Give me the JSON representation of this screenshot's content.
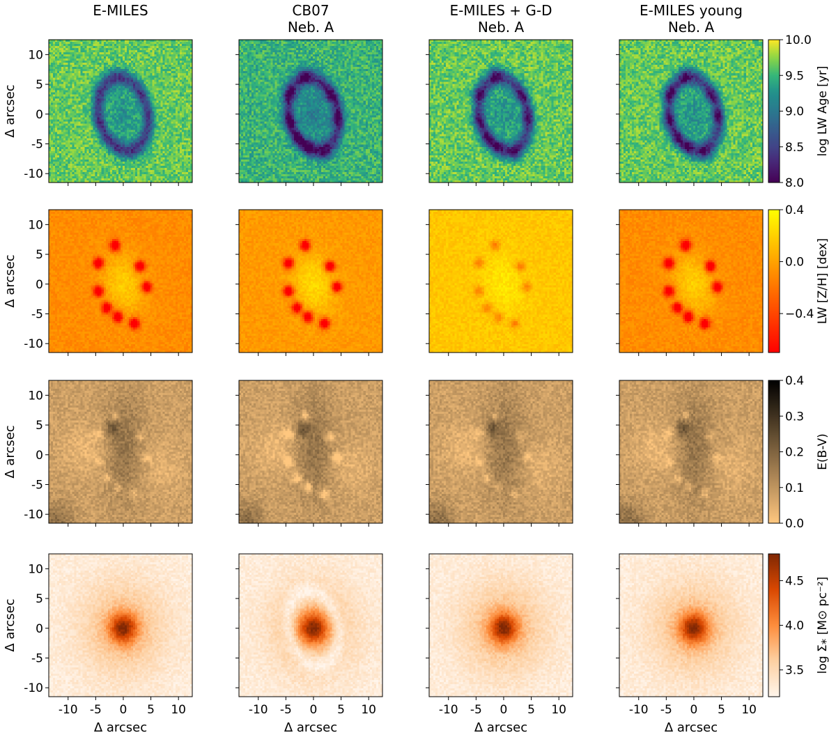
{
  "chart_data": {
    "type": "heatmap",
    "column_titles": [
      [
        "E-MILES"
      ],
      [
        "CB07",
        "Neb. A"
      ],
      [
        "E-MILES + G-D",
        "Neb. A"
      ],
      [
        "E-MILES young",
        "Neb. A"
      ]
    ],
    "xlabel": "Δ arcsec",
    "ylabel": "Δ arcsec",
    "xlim": [
      -13.5,
      12.5
    ],
    "ylim": [
      -11.5,
      12.5
    ],
    "x_ticks": [
      -10,
      -5,
      0,
      5,
      10
    ],
    "x_tick_labels": [
      "-10",
      "-5",
      "0",
      "5",
      "10"
    ],
    "y_ticks": [
      10,
      5,
      0,
      -5,
      -10
    ],
    "y_tick_labels": [
      "10",
      "5",
      "0",
      "-5",
      "-10"
    ],
    "rows": [
      {
        "quantity": "age",
        "colorbar_label": "log LW Age [yr]",
        "colormap": "viridis",
        "range": [
          8.0,
          10.0
        ],
        "colorbar_ticks": [
          10.0,
          9.5,
          9.0,
          8.5,
          8.0
        ],
        "colorbar_tick_labels": [
          "10.0",
          "9.5",
          "9.0",
          "8.5",
          "8.0"
        ]
      },
      {
        "quantity": "metallicity",
        "colorbar_label": "LW [Z/H] [dex]",
        "colormap": "autumn",
        "range": [
          -0.7,
          0.4
        ],
        "colorbar_ticks": [
          0.4,
          0.0,
          -0.4
        ],
        "colorbar_tick_labels": [
          "0.4",
          "0.0",
          "−0.4"
        ]
      },
      {
        "quantity": "extinction",
        "colorbar_label": "E(B-V)",
        "colormap": "copper_r",
        "range": [
          0.0,
          0.4
        ],
        "colorbar_ticks": [
          0.4,
          0.3,
          0.2,
          0.1,
          0.0
        ],
        "colorbar_tick_labels": [
          "0.4",
          "0.3",
          "0.2",
          "0.1",
          "0.0"
        ]
      },
      {
        "quantity": "mass_density",
        "colorbar_label": "log Σ⁎ [M⊙ pc⁻²]",
        "colormap": "oranges",
        "range": [
          3.2,
          4.8
        ],
        "colorbar_ticks": [
          4.5,
          4.0,
          3.5
        ],
        "colorbar_tick_labels": [
          "4.5",
          "4.0",
          "3.5"
        ]
      }
    ]
  }
}
